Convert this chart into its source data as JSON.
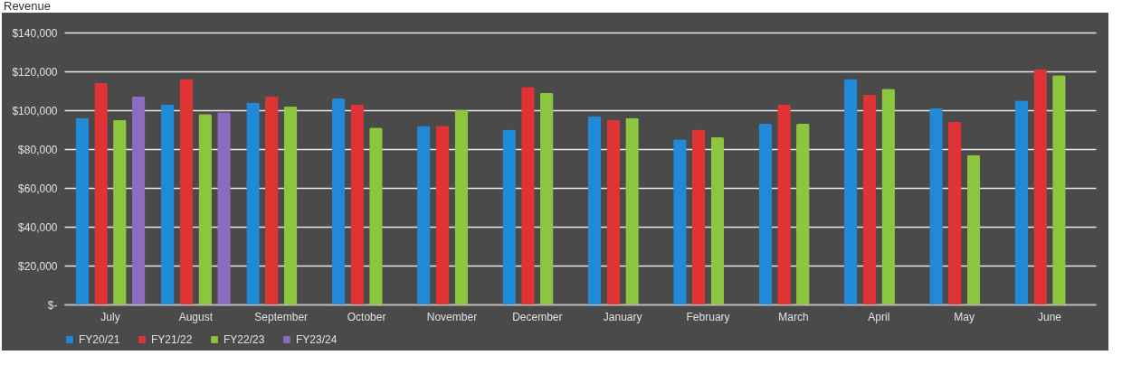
{
  "chart_data": {
    "type": "bar",
    "title": "Revenue",
    "categories": [
      "July",
      "August",
      "September",
      "October",
      "November",
      "December",
      "January",
      "February",
      "March",
      "April",
      "May",
      "June"
    ],
    "series": [
      {
        "name": "FY20/21",
        "color": "#2089d8",
        "values": [
          96000,
          103000,
          104000,
          106000,
          92000,
          90000,
          97000,
          85000,
          93000,
          116000,
          101000,
          105000
        ]
      },
      {
        "name": "FY21/22",
        "color": "#e03434",
        "values": [
          114000,
          116000,
          107000,
          103000,
          92000,
          112000,
          95000,
          90000,
          103000,
          108000,
          94000,
          121000
        ]
      },
      {
        "name": "FY22/23",
        "color": "#8cc63e",
        "values": [
          95000,
          98000,
          102000,
          91000,
          100000,
          109000,
          96000,
          86000,
          93000,
          111000,
          77000,
          118000
        ]
      },
      {
        "name": "FY23/24",
        "color": "#8c6cc0",
        "values": [
          107000,
          99000,
          null,
          null,
          null,
          null,
          null,
          null,
          null,
          null,
          null,
          null
        ]
      }
    ],
    "ylim": [
      0,
      140000
    ],
    "yticks": [
      {
        "value": 0,
        "label": "$-"
      },
      {
        "value": 20000,
        "label": "$20,000"
      },
      {
        "value": 40000,
        "label": "$40,000"
      },
      {
        "value": 60000,
        "label": "$60,000"
      },
      {
        "value": 80000,
        "label": "$80,000"
      },
      {
        "value": 100000,
        "label": "$100,000"
      },
      {
        "value": 120000,
        "label": "$120,000"
      },
      {
        "value": 140000,
        "label": "$140,000"
      }
    ],
    "grid": "y",
    "legend": "bottom"
  }
}
